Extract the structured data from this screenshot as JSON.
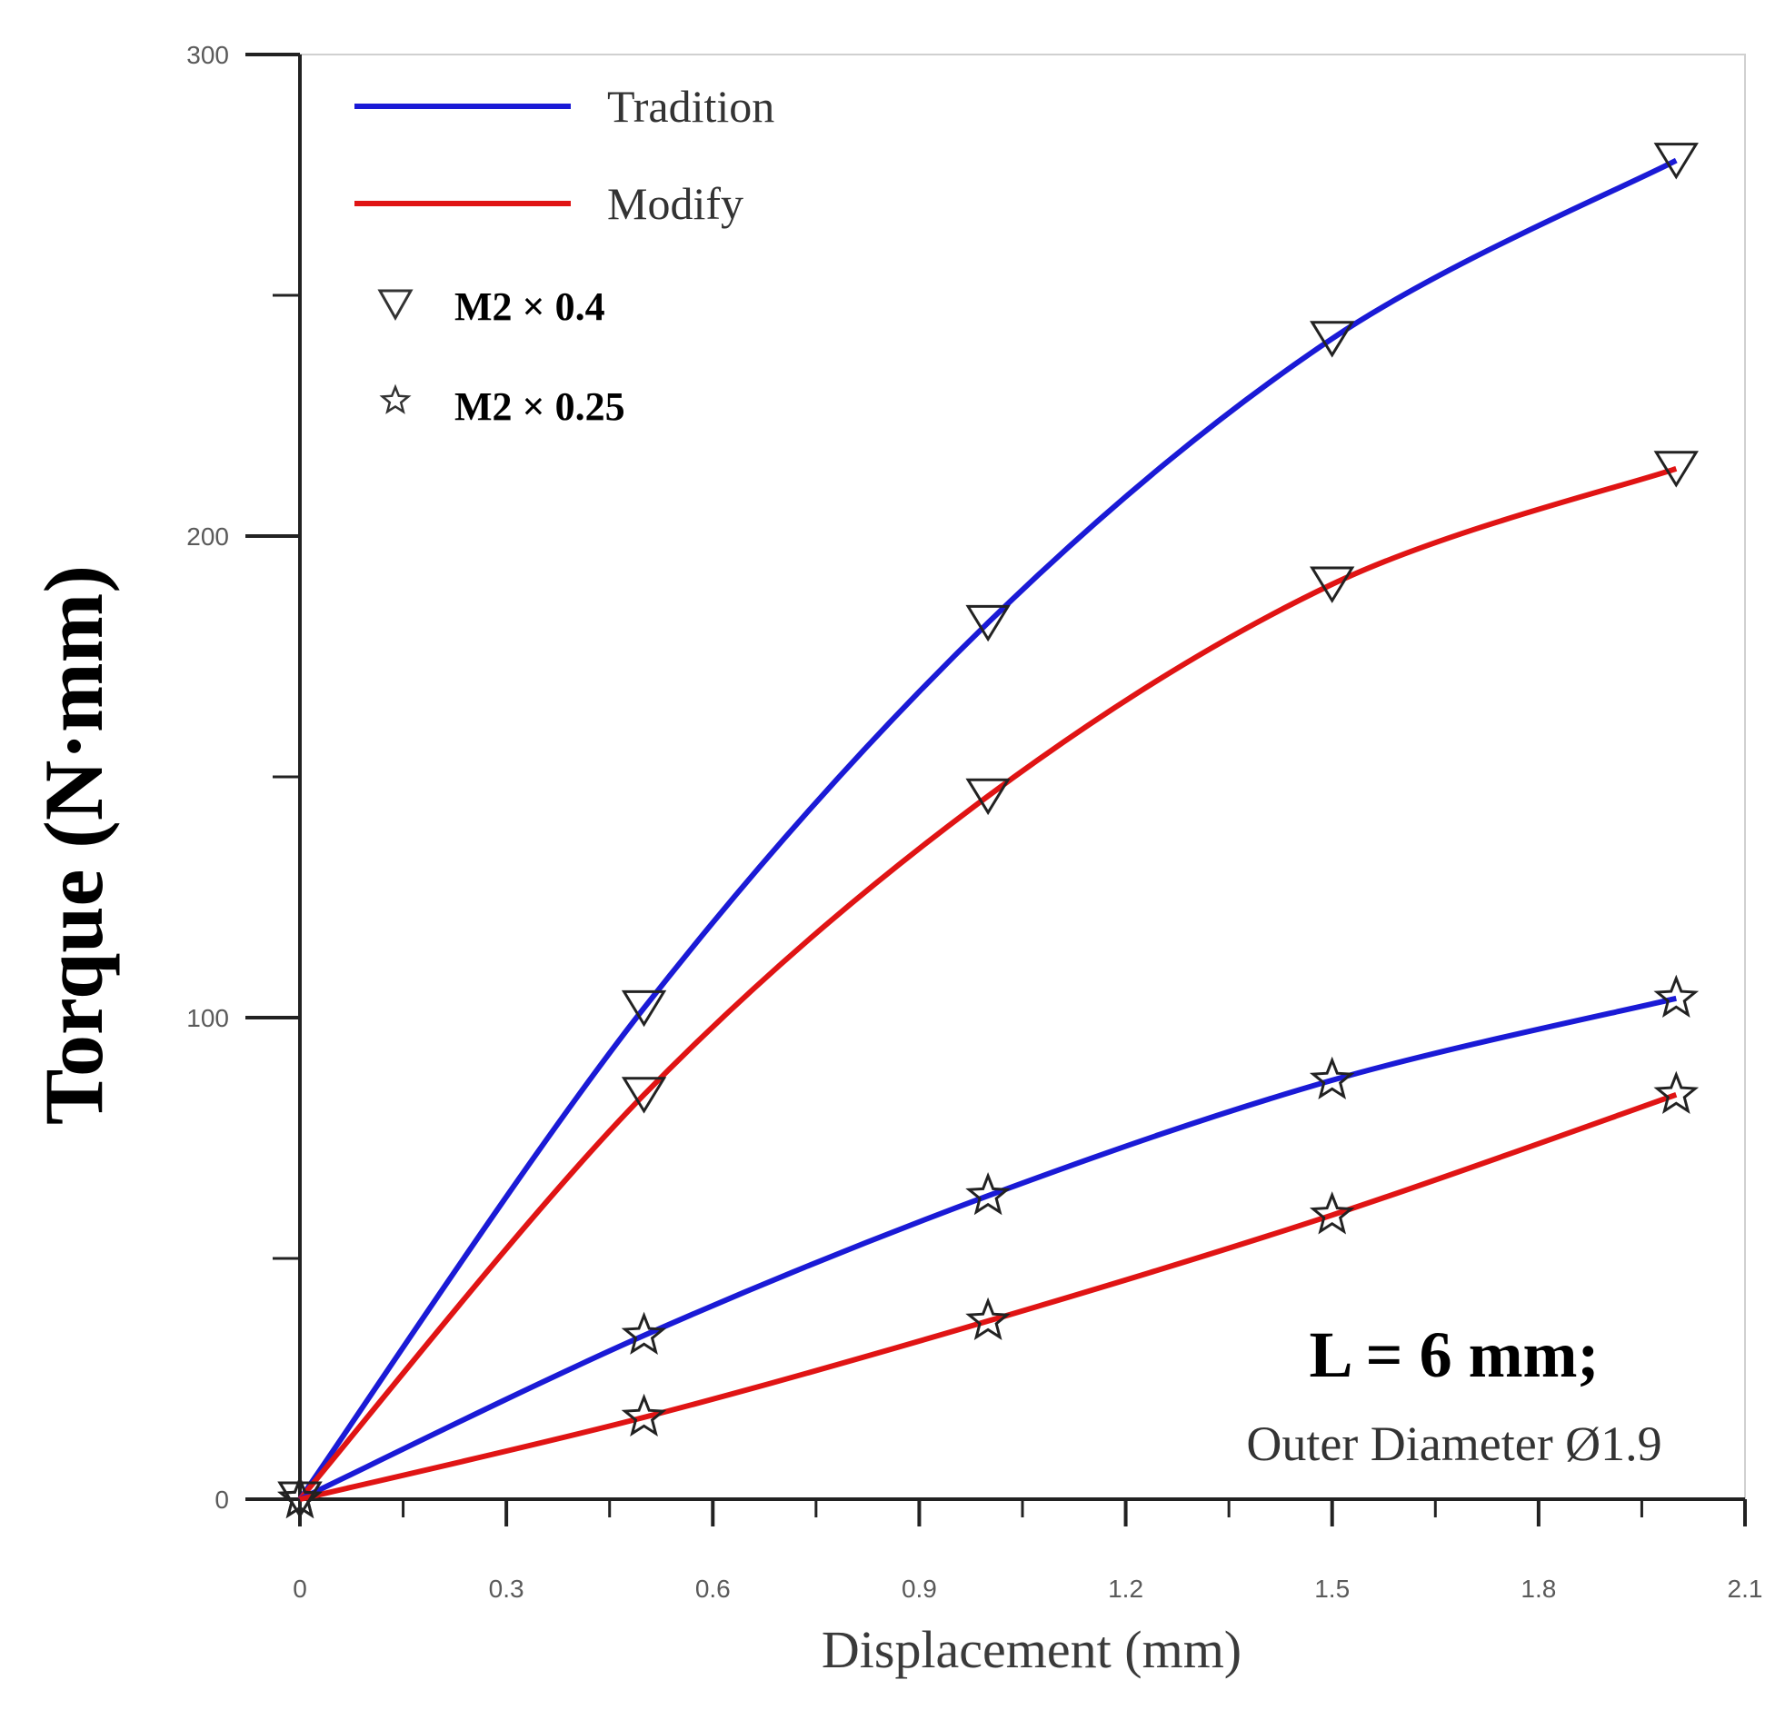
{
  "chart_data": {
    "type": "line",
    "title": "",
    "xlabel": "Displacement (mm)",
    "ylabel": "Torque (N·mm)",
    "xlim": [
      0,
      2.1
    ],
    "ylim": [
      0,
      300
    ],
    "x_ticks": [
      0,
      0.3,
      0.6,
      0.9,
      1.2,
      1.5,
      1.8,
      2.1
    ],
    "x_tick_labels": [
      "0",
      "0.3",
      "0.6",
      "0.9",
      "1.2",
      "1.5",
      "1.8",
      "2.1"
    ],
    "y_ticks": [
      0,
      100,
      200,
      300
    ],
    "y_tick_labels": [
      "0",
      "100",
      "200",
      "300"
    ],
    "y_minor_ticks": [
      50,
      150,
      250
    ],
    "x_minor_ticks": [
      0.15,
      0.45,
      0.75,
      1.05,
      1.35,
      1.65,
      1.95
    ],
    "grid": false,
    "legend": {
      "position": "top-left",
      "lines": [
        {
          "label": "Tradition",
          "color": "#1a1ad6"
        },
        {
          "label": "Modify",
          "color": "#e01414"
        }
      ],
      "markers": [
        {
          "symbol": "triangle-down",
          "label": "M2 × 0.4"
        },
        {
          "symbol": "star",
          "label": "M2 × 0.25"
        }
      ]
    },
    "series": [
      {
        "name": "Tradition M2 × 0.4",
        "color": "#1a1ad6",
        "marker": "triangle-down",
        "x": [
          0,
          0.5,
          1.0,
          1.5,
          2.0
        ],
        "y": [
          0,
          102,
          182,
          241,
          278
        ]
      },
      {
        "name": "Modify M2 × 0.4",
        "color": "#e01414",
        "marker": "triangle-down",
        "x": [
          0,
          0.5,
          1.0,
          1.5,
          2.0
        ],
        "y": [
          0,
          84,
          146,
          190,
          214
        ]
      },
      {
        "name": "Tradition M2 × 0.25",
        "color": "#1a1ad6",
        "marker": "star",
        "x": [
          0,
          0.5,
          1.0,
          1.5,
          2.0
        ],
        "y": [
          0,
          34,
          63,
          87,
          104
        ]
      },
      {
        "name": "Modify M2 × 0.25",
        "color": "#e01414",
        "marker": "star",
        "x": [
          0,
          0.5,
          1.0,
          1.5,
          2.0
        ],
        "y": [
          0,
          17,
          37,
          59,
          84
        ]
      }
    ],
    "annotations": [
      "L = 6 mm;",
      "Outer Diameter Ø1.9"
    ]
  }
}
